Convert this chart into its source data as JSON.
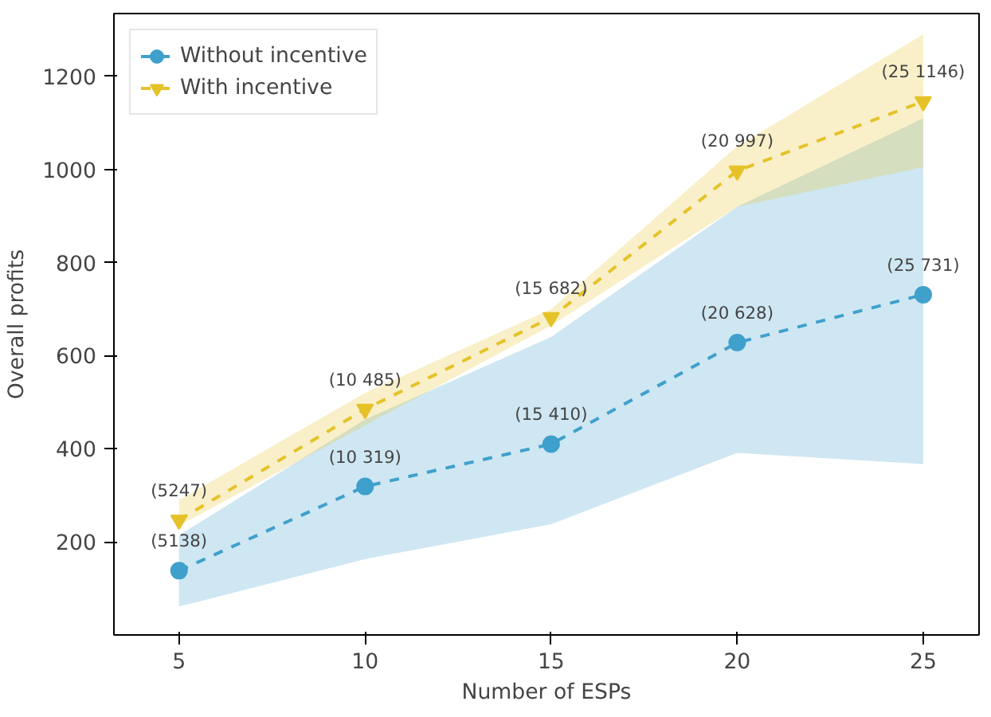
{
  "chart_data": {
    "type": "line",
    "xlabel": "Number of ESPs",
    "ylabel": "Overall profits",
    "x": [
      5,
      10,
      15,
      20,
      25
    ],
    "xlim": [
      3.25,
      26.5
    ],
    "ylim": [
      0,
      1335
    ],
    "xticks": [
      5,
      10,
      15,
      20,
      25
    ],
    "yticks": [
      200,
      400,
      600,
      800,
      1000,
      1200
    ],
    "legend": "top left",
    "grid": false,
    "line_style": "dashed",
    "series": [
      {
        "name": "Without incentive",
        "color": "#3fa0cc",
        "marker": "circle",
        "values": [
          138,
          319,
          410,
          628,
          731
        ],
        "lower": [
          61,
          163,
          238,
          391,
          367
        ],
        "upper": [
          214,
          463,
          640,
          920,
          1110
        ]
      },
      {
        "name": "With incentive",
        "color": "#e6c229",
        "marker": "triangle_down",
        "values": [
          247,
          485,
          682,
          997,
          1146
        ],
        "lower": [
          235,
          450,
          665,
          920,
          1005
        ],
        "upper": [
          290,
          520,
          700,
          1050,
          1290
        ]
      }
    ],
    "annotations": [
      {
        "text": "(5138)",
        "x": 5,
        "y": 138
      },
      {
        "text": "(10 319)",
        "x": 10,
        "y": 319
      },
      {
        "text": "(15 410)",
        "x": 15,
        "y": 410
      },
      {
        "text": "(20 628)",
        "x": 20,
        "y": 628
      },
      {
        "text": "(25 731)",
        "x": 25,
        "y": 731
      },
      {
        "text": "(5247)",
        "x": 5,
        "y": 247
      },
      {
        "text": "(10 485)",
        "x": 10,
        "y": 485
      },
      {
        "text": "(15 682)",
        "x": 15,
        "y": 682
      },
      {
        "text": "(20 997)",
        "x": 20,
        "y": 997
      },
      {
        "text": "(25 1146)",
        "x": 25,
        "y": 1146
      }
    ]
  }
}
